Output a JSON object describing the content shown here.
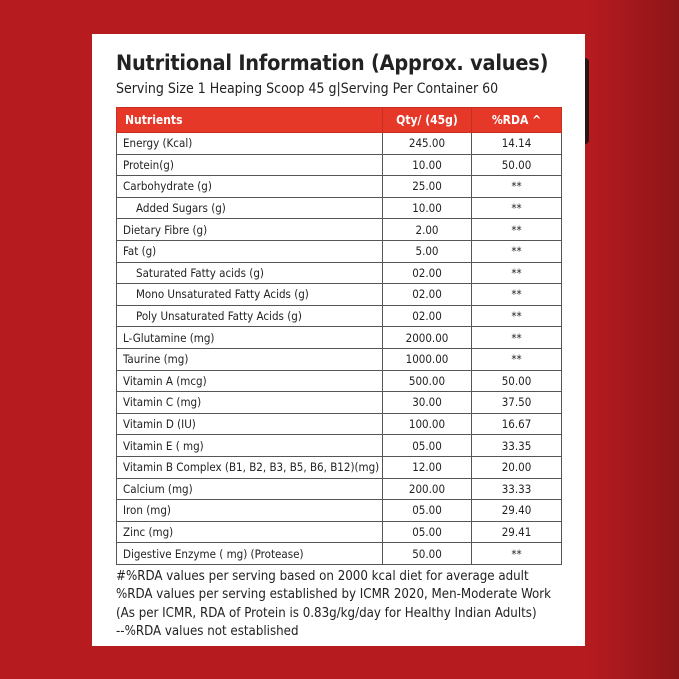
{
  "title": "Nutritional Information (Approx. values)",
  "subtitle": "Serving Size 1 Heaping Scoop 45 g|Serving Per Container 60",
  "table": {
    "headers": {
      "nutrients": "Nutrients",
      "qty": "Qty/ (45g)",
      "rda": "%RDA ^"
    },
    "rows": [
      {
        "name": "Energy (Kcal)",
        "qty": "245.00",
        "rda": "14.14",
        "sub": false
      },
      {
        "name": "Protein(g)",
        "qty": "10.00",
        "rda": "50.00",
        "sub": false
      },
      {
        "name": "Carbohydrate (g)",
        "qty": "25.00",
        "rda": "**",
        "sub": false
      },
      {
        "name": "Added Sugars (g)",
        "qty": "10.00",
        "rda": "**",
        "sub": true
      },
      {
        "name": "Dietary Fibre (g)",
        "qty": "2.00",
        "rda": "**",
        "sub": false
      },
      {
        "name": "Fat (g)",
        "qty": "5.00",
        "rda": "**",
        "sub": false
      },
      {
        "name": "Saturated Fatty acids (g)",
        "qty": "02.00",
        "rda": "**",
        "sub": true
      },
      {
        "name": "Mono Unsaturated Fatty Acids (g)",
        "qty": "02.00",
        "rda": "**",
        "sub": true
      },
      {
        "name": "Poly Unsaturated Fatty Acids (g)",
        "qty": "02.00",
        "rda": "**",
        "sub": true
      },
      {
        "name": "L-Glutamine (mg)",
        "qty": "2000.00",
        "rda": "**",
        "sub": false
      },
      {
        "name": "Taurine (mg)",
        "qty": "1000.00",
        "rda": "**",
        "sub": false
      },
      {
        "name": "Vitamin A (mcg)",
        "qty": "500.00",
        "rda": "50.00",
        "sub": false
      },
      {
        "name": "Vitamin C (mg)",
        "qty": "30.00",
        "rda": "37.50",
        "sub": false
      },
      {
        "name": "Vitamin D (IU)",
        "qty": "100.00",
        "rda": "16.67",
        "sub": false
      },
      {
        "name": "Vitamin E ( mg)",
        "qty": "05.00",
        "rda": "33.35",
        "sub": false
      },
      {
        "name": "Vitamin B Complex (B1, B2, B3, B5, B6, B12)(mg)",
        "qty": "12.00",
        "rda": "20.00",
        "sub": false
      },
      {
        "name": "Calcium (mg)",
        "qty": "200.00",
        "rda": "33.33",
        "sub": false
      },
      {
        "name": "Iron (mg)",
        "qty": "05.00",
        "rda": "29.40",
        "sub": false
      },
      {
        "name": "Zinc (mg)",
        "qty": "05.00",
        "rda": "29.41",
        "sub": false
      },
      {
        "name": "Digestive Enzyme ( mg) (Protease)",
        "qty": "50.00",
        "rda": "**",
        "sub": false
      }
    ]
  },
  "footnotes": [
    "#%RDA values per serving based on 2000 kcal diet for average adult",
    "%RDA values per serving established by ICMR 2020, Men-Moderate Work",
    "(As per ICMR, RDA of Protein is 0.83g/kg/day for Healthy Indian Adults)",
    "--%RDA values not established"
  ],
  "colors": {
    "background": "#b51b1f",
    "header": "#e63828",
    "card": "#ffffff"
  }
}
